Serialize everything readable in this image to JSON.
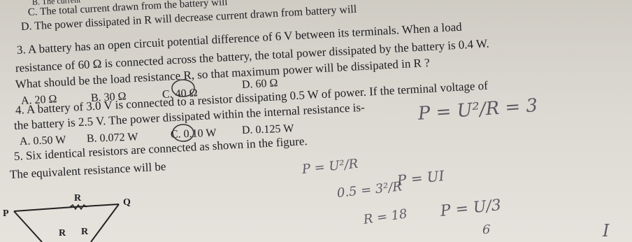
{
  "lines": [
    "B. The current",
    "C. The total current drawn from the battery will",
    "D. The power dissipated in R will decrease current drawn from battery will",
    "3. A battery has an open circuit potential difference of 6 V between its terminals. When a load",
    "resistance of 60 Ω is connected across the battery, the total power dissipated by the battery is 0.4 W.",
    "What should be the load resistance R, so that maximum power will be dissipated in R ?",
    "4. A battery of 3.0 V is connected to a resistor dissipating 0.5 W of power. If the terminal voltage of",
    "the battery is 2.5 V. The power dissipated within the internal resistance is-",
    "5. Six identical resistors are connected as shown in the figure.",
    "The equivalent resistance will be"
  ],
  "q3_options": [
    "A. 20 Ω",
    "B. 30 Ω",
    "C. 40 Ω",
    "D. 60 Ω"
  ],
  "q4_options": [
    "A. 0.50 W",
    "B. 0.072 W",
    "C. 0.10 W",
    "D. 0.125 W"
  ],
  "figure": {
    "labels": [
      "P",
      "R",
      "Q",
      "R",
      "R"
    ]
  },
  "handwriting": [
    "P = U²/R = 3",
    "P = U²/R",
    "0.5 = 3²/R",
    "P = UI",
    "R = 18",
    "P = U/3",
    "6",
    "I"
  ]
}
